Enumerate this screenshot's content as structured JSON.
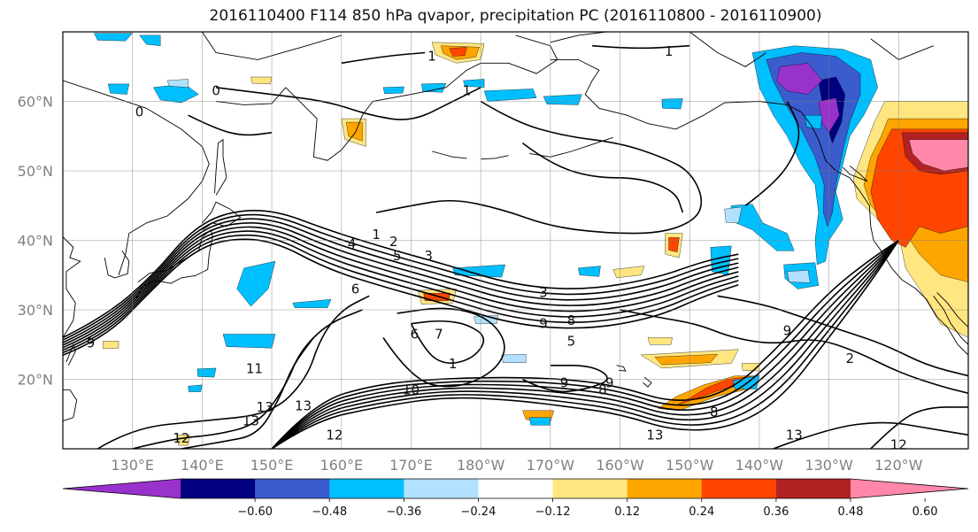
{
  "title": "2016110400 F114 850 hPa qvapor, precipitation PC (2016110800 - 2016110900)",
  "map": {
    "lon_range": [
      120,
      250
    ],
    "lat_range": [
      10,
      70
    ],
    "lat_ticks": [
      {
        "lat": 20,
        "label": "20°N"
      },
      {
        "lat": 30,
        "label": "30°N"
      },
      {
        "lat": 40,
        "label": "40°N"
      },
      {
        "lat": 50,
        "label": "50°N"
      },
      {
        "lat": 60,
        "label": "60°N"
      }
    ],
    "lon_ticks": [
      {
        "lon": 130,
        "label": "130°E"
      },
      {
        "lon": 140,
        "label": "140°E"
      },
      {
        "lon": 150,
        "label": "150°E"
      },
      {
        "lon": 160,
        "label": "160°E"
      },
      {
        "lon": 170,
        "label": "170°E"
      },
      {
        "lon": 180,
        "label": "180°W"
      },
      {
        "lon": 190,
        "label": "170°W"
      },
      {
        "lon": 200,
        "label": "160°W"
      },
      {
        "lon": 210,
        "label": "150°W"
      },
      {
        "lon": 220,
        "label": "140°W"
      },
      {
        "lon": 230,
        "label": "130°W"
      },
      {
        "lon": 240,
        "label": "120°W"
      }
    ],
    "contour_labels": [
      {
        "text": "1",
        "lon": 173,
        "lat": 66.5
      },
      {
        "text": "1",
        "lon": 207,
        "lat": 67.2
      },
      {
        "text": "0",
        "lon": 142,
        "lat": 61.5
      },
      {
        "text": "0",
        "lon": 131,
        "lat": 58.5
      },
      {
        "text": "1",
        "lon": 178,
        "lat": 61.5
      },
      {
        "text": "1",
        "lon": 165,
        "lat": 40.8
      },
      {
        "text": "2",
        "lon": 167.5,
        "lat": 39.8
      },
      {
        "text": "4",
        "lon": 161.5,
        "lat": 39.5
      },
      {
        "text": "5",
        "lon": 168,
        "lat": 37.8
      },
      {
        "text": "3",
        "lon": 172.5,
        "lat": 37.8
      },
      {
        "text": "6",
        "lon": 162,
        "lat": 33
      },
      {
        "text": "3",
        "lon": 189,
        "lat": 32.5
      },
      {
        "text": "9",
        "lon": 189,
        "lat": 28
      },
      {
        "text": "8",
        "lon": 193,
        "lat": 28.5
      },
      {
        "text": "5",
        "lon": 193,
        "lat": 25.5
      },
      {
        "text": "7",
        "lon": 174,
        "lat": 26.5
      },
      {
        "text": "6",
        "lon": 170.5,
        "lat": 26.5
      },
      {
        "text": "1",
        "lon": 176,
        "lat": 22.2
      },
      {
        "text": "10",
        "lon": 170,
        "lat": 18.5
      },
      {
        "text": "9",
        "lon": 192,
        "lat": 19.5
      },
      {
        "text": "9",
        "lon": 198.5,
        "lat": 19.5
      },
      {
        "text": "8",
        "lon": 197.5,
        "lat": 18.5
      },
      {
        "text": "9",
        "lon": 124,
        "lat": 25.2
      },
      {
        "text": "11",
        "lon": 147.5,
        "lat": 21.5
      },
      {
        "text": "13",
        "lon": 149,
        "lat": 16
      },
      {
        "text": "13",
        "lon": 154.5,
        "lat": 16.2
      },
      {
        "text": "13",
        "lon": 147,
        "lat": 14
      },
      {
        "text": "12",
        "lon": 137,
        "lat": 11.5
      },
      {
        "text": "12",
        "lon": 159,
        "lat": 12
      },
      {
        "text": "13",
        "lon": 205,
        "lat": 12
      },
      {
        "text": "8",
        "lon": 213.5,
        "lat": 15.3
      },
      {
        "text": "13",
        "lon": 225,
        "lat": 12
      },
      {
        "text": "12",
        "lon": 240,
        "lat": 10.6
      },
      {
        "text": "9",
        "lon": 224,
        "lat": 27
      },
      {
        "text": "2",
        "lon": 233,
        "lat": 23
      }
    ]
  },
  "colorbar": {
    "colors": [
      "#9932cc",
      "#000080",
      "#3a5ccc",
      "#00bfff",
      "#b2e1ff",
      "#ffffff",
      "#ffe680",
      "#ffa500",
      "#ff4500",
      "#b22222",
      "#ff88aa"
    ],
    "tick_labels": [
      "−0.60",
      "−0.48",
      "−0.36",
      "−0.24",
      "−0.12",
      "0.12",
      "0.24",
      "0.36",
      "0.48",
      "0.60"
    ]
  }
}
